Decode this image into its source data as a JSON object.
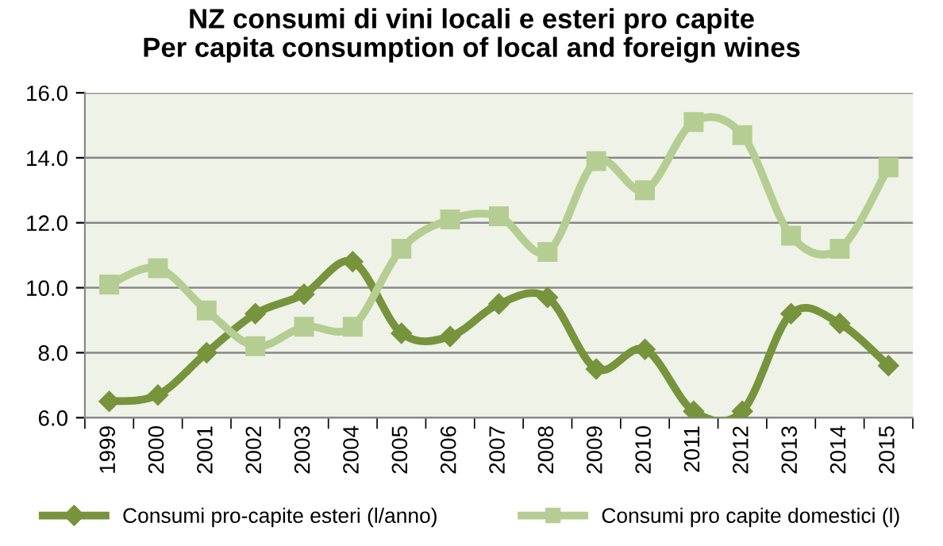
{
  "chart_data": {
    "type": "line",
    "title": "NZ consumi di vini locali e esteri pro capite\nPer capita consumption of local and foreign wines",
    "categories": [
      "1999",
      "2000",
      "2001",
      "2002",
      "2003",
      "2004",
      "2005",
      "2006",
      "2007",
      "2008",
      "2009",
      "2010",
      "2011",
      "2012",
      "2013",
      "2014",
      "2015"
    ],
    "series": [
      {
        "name": "Consumi pro-capite esteri (l/anno)",
        "color": "#77933c",
        "marker": "diamond",
        "values": [
          6.5,
          6.7,
          8.0,
          9.2,
          9.8,
          10.8,
          8.6,
          8.5,
          9.5,
          9.7,
          7.5,
          8.1,
          6.2,
          6.2,
          9.2,
          8.9,
          7.6
        ]
      },
      {
        "name": "Consumi pro capite domestici (l)",
        "color": "#b5cd92",
        "marker": "square",
        "values": [
          10.1,
          10.6,
          9.3,
          8.2,
          8.8,
          8.8,
          11.2,
          12.1,
          12.2,
          11.1,
          13.9,
          13.0,
          15.1,
          14.7,
          11.6,
          11.2,
          13.7
        ]
      }
    ],
    "ylim": [
      6,
      16
    ],
    "yticks": [
      {
        "value": 6,
        "label": "6.0"
      },
      {
        "value": 8,
        "label": "8.0"
      },
      {
        "value": 10,
        "label": "10.0"
      },
      {
        "value": 12,
        "label": "12.0"
      },
      {
        "value": 14,
        "label": "14.0"
      },
      {
        "value": 16,
        "label": "16.0"
      }
    ],
    "grid": "y",
    "legend": "bottom"
  }
}
